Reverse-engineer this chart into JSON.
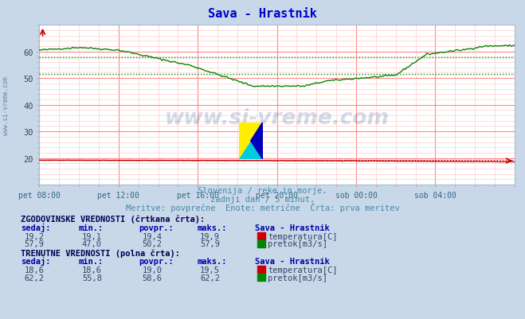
{
  "title": "Sava - Hrastnik",
  "subtitle1": "Slovenija / reke in morje.",
  "subtitle2": "zadnji dan / 5 minut.",
  "subtitle3": "Meritve: povprečne  Enote: metrične  Črta: prva meritev",
  "xlabel_ticks": [
    "pet 08:00",
    "pet 12:00",
    "pet 16:00",
    "pet 20:00",
    "sob 00:00",
    "sob 04:00"
  ],
  "bg_color": "#c8d8e8",
  "plot_bg_color": "#ffffff",
  "title_color": "#0000cc",
  "subtitle_color": "#4488aa",
  "grid_color_major": "#ff8888",
  "grid_color_minor": "#ffcccc",
  "temp_color": "#cc0000",
  "flow_color": "#008800",
  "watermark_text_color": "#1a3a7a",
  "y_min": 10,
  "y_max": 70,
  "y_ticks": [
    20,
    30,
    40,
    50,
    60
  ],
  "table_data": {
    "hist_label": "ZGODOVINSKE VREDNOSTI (črtkana črta):",
    "curr_label": "TRENUTNE VREDNOSTI (polna črta):",
    "col_headers": [
      "sedaj:",
      "min.:",
      "povpr.:",
      "maks.:",
      "Sava - Hrastnik"
    ],
    "hist_temp": [
      "19,2",
      "19,1",
      "19,4",
      "19,9"
    ],
    "hist_flow": [
      "57,9",
      "47,0",
      "50,2",
      "57,9"
    ],
    "curr_temp": [
      "18,6",
      "18,6",
      "19,0",
      "19,5"
    ],
    "curr_flow": [
      "62,2",
      "55,8",
      "58,6",
      "62,2"
    ],
    "label_temp": "temperatura[C]",
    "label_flow": "pretok[m3/s]"
  }
}
